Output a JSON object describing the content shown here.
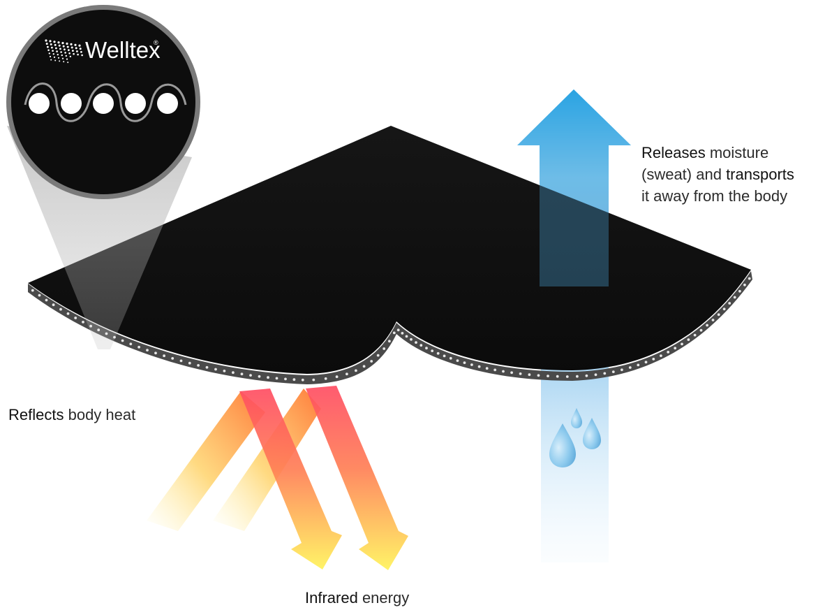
{
  "brand": {
    "name": "Welltex",
    "registered_mark": "®"
  },
  "labels": {
    "moisture": {
      "line1_bold": "Releases",
      "line1_rest": " moisture",
      "line2_start": "(sweat) and ",
      "line2_bold": "transports",
      "line3": "it away from the body"
    },
    "heat": {
      "bold": "Reflects",
      "rest": " body heat"
    },
    "infrared": {
      "bold": "Infrared",
      "rest": " energy"
    }
  },
  "colors": {
    "fabric": "#111111",
    "fabric_edge": "#4a4a4a",
    "moisture_arrow": "#1aa3e6",
    "heat_red": "#ff4d5e",
    "heat_orange": "#ff8a3a",
    "heat_yellow": "#ffe95a",
    "water_drop": "#7fc4ec"
  },
  "icons": {
    "logo": "welltex-mesh-logo",
    "weave": "weave-pattern-icon",
    "drops": "water-drop-icon"
  }
}
